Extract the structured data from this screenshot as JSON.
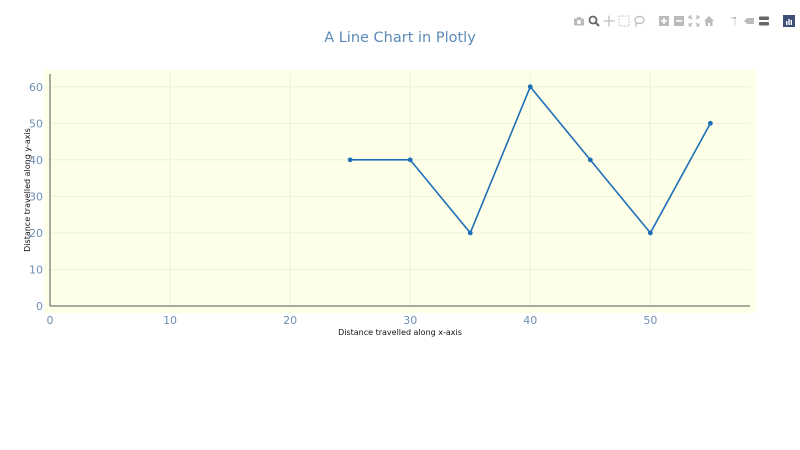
{
  "title": "A Line Chart in Plotly",
  "modebar": {
    "groups": [
      [
        {
          "name": "camera-icon",
          "label": "Download plot as a png"
        },
        {
          "name": "zoom-icon",
          "label": "Zoom",
          "active": true
        },
        {
          "name": "pan-icon",
          "label": "Pan"
        },
        {
          "name": "box-select-icon",
          "label": "Box Select"
        },
        {
          "name": "lasso-select-icon",
          "label": "Lasso Select"
        }
      ],
      [
        {
          "name": "zoom-in-icon",
          "label": "Zoom in"
        },
        {
          "name": "zoom-out-icon",
          "label": "Zoom out"
        },
        {
          "name": "autoscale-icon",
          "label": "Autoscale"
        },
        {
          "name": "home-icon",
          "label": "Reset axes"
        }
      ],
      [
        {
          "name": "spike-lines-icon",
          "label": "Toggle Spike Lines"
        },
        {
          "name": "hover-closest-icon",
          "label": "Show closest data on hover"
        },
        {
          "name": "hover-compare-icon",
          "label": "Compare data on hover",
          "active": true
        }
      ],
      [
        {
          "name": "plotly-logo-icon",
          "label": "Produced with Plotly"
        }
      ]
    ]
  },
  "colors": {
    "line": "#1f6fb8",
    "plot_bg": "#fdffe8",
    "grid": "#eef0dc",
    "axis": "#555555",
    "tick": "#6f8fb5",
    "title": "#5b8ab8",
    "icon": "#bbbbbb",
    "icon_active": "#666666",
    "logo_bg": "#3f4f75"
  },
  "chart_data": {
    "type": "line",
    "title": "A Line Chart in Plotly",
    "xlabel": "Distance travelled along x-axis",
    "ylabel": "Distance travelled along y-axis",
    "x": [
      25,
      30,
      35,
      40,
      45,
      50,
      55
    ],
    "y": [
      40,
      40,
      20,
      60,
      40,
      20,
      50
    ],
    "xlim": [
      0,
      58.3
    ],
    "ylim": [
      0,
      63.5
    ],
    "xticks": [
      0,
      10,
      20,
      30,
      40,
      50
    ],
    "yticks": [
      0,
      10,
      20,
      30,
      40,
      50,
      60
    ],
    "mode": "lines+markers",
    "grid": true,
    "legend": false
  }
}
